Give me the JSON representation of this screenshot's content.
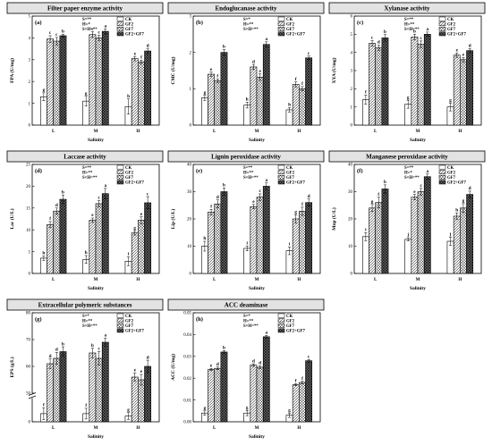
{
  "legend": [
    "CK",
    "GF2",
    "GF7",
    "GF2+GF7"
  ],
  "patterns": [
    "white",
    "diag",
    "cross",
    "dark"
  ],
  "chart_data": [
    {
      "type": "bar",
      "id": "p1",
      "label": "(a)",
      "title": "Filter paper enzyme activity",
      "ylabel": "FPA (U/mg)",
      "xlabel": "Salinity",
      "categories": [
        "L",
        "M",
        "H"
      ],
      "ylim": [
        0,
        5
      ],
      "yticks": [
        "0",
        "1",
        "2",
        "3",
        "4",
        "5"
      ],
      "stats": [
        "S=**",
        "H=*",
        "S×H=**"
      ],
      "series": [
        {
          "name": "CK",
          "values": [
            1.3,
            1.1,
            0.85
          ],
          "errors": [
            0.18,
            0.22,
            0.35
          ],
          "letters": [
            "g",
            "g",
            "h"
          ]
        },
        {
          "name": "GF2",
          "values": [
            3.95,
            4.15,
            3.05
          ],
          "errors": [
            0.15,
            0.13,
            0.1
          ],
          "letters": [
            "c",
            "c",
            "e"
          ]
        },
        {
          "name": "GF7",
          "values": [
            3.85,
            4.0,
            2.9
          ],
          "errors": [
            0.17,
            0.12,
            0.08
          ],
          "letters": [
            "c",
            "c",
            "f"
          ]
        },
        {
          "name": "GF2+GF7",
          "values": [
            4.1,
            4.3,
            3.4
          ],
          "errors": [
            0.06,
            0.12,
            0.12
          ],
          "letters": [
            "b",
            "a",
            "d"
          ]
        }
      ]
    },
    {
      "type": "bar",
      "id": "p2",
      "label": "(b)",
      "title": "Endoglucanase activity",
      "ylabel": "CMC (U/mg)",
      "xlabel": "Salinity",
      "categories": [
        "L",
        "M",
        "H"
      ],
      "ylim": [
        0,
        3
      ],
      "yticks": [
        "0",
        "1",
        "2",
        "3"
      ],
      "stats": [
        "S=*",
        "H=**",
        "S×H=**"
      ],
      "series": [
        {
          "name": "CK",
          "values": [
            0.75,
            0.55,
            0.42
          ],
          "errors": [
            0.07,
            0.08,
            0.06
          ],
          "letters": [
            "g",
            "h",
            "h"
          ]
        },
        {
          "name": "GF2",
          "values": [
            1.4,
            1.6,
            1.12
          ],
          "errors": [
            0.06,
            0.07,
            0.07
          ],
          "letters": [
            "e",
            "d",
            "f"
          ]
        },
        {
          "name": "GF7",
          "values": [
            1.22,
            1.32,
            1.0
          ],
          "errors": [
            0.05,
            0.09,
            0.06
          ],
          "letters": [
            "f",
            "e",
            "f"
          ]
        },
        {
          "name": "GF2+GF7",
          "values": [
            2.0,
            2.22,
            1.85
          ],
          "errors": [
            0.08,
            0.07,
            0.05
          ],
          "letters": [
            "b",
            "a",
            "c"
          ]
        }
      ]
    },
    {
      "type": "bar",
      "id": "p3",
      "label": "(c)",
      "title": "Xylanase activity",
      "ylabel": "XYA (U/mg)",
      "xlabel": "Salinity",
      "categories": [
        "L",
        "M",
        "H"
      ],
      "ylim": [
        0,
        6
      ],
      "yticks": [
        "0",
        "1",
        "2",
        "3",
        "4",
        "5",
        "6"
      ],
      "stats": [
        "S=**",
        "H=**",
        "S×H=**"
      ],
      "series": [
        {
          "name": "CK",
          "values": [
            1.4,
            1.15,
            1.0
          ],
          "errors": [
            0.25,
            0.22,
            0.22
          ],
          "letters": [
            "f",
            "g",
            "g"
          ]
        },
        {
          "name": "GF2",
          "values": [
            4.5,
            4.85,
            3.85
          ],
          "errors": [
            0.15,
            0.15,
            0.12
          ],
          "letters": [
            "c",
            "b",
            "e"
          ]
        },
        {
          "name": "GF7",
          "values": [
            4.25,
            4.45,
            3.6
          ],
          "errors": [
            0.15,
            0.18,
            0.12
          ],
          "letters": [
            "d",
            "c",
            "e"
          ]
        },
        {
          "name": "GF2+GF7",
          "values": [
            4.8,
            5.0,
            4.1
          ],
          "errors": [
            0.18,
            0.12,
            0.12
          ],
          "letters": [
            "b",
            "a",
            "d"
          ]
        }
      ]
    },
    {
      "type": "bar",
      "id": "p4",
      "label": "(d)",
      "title": "Laccase  activity",
      "ylabel": "Lac (U/L)",
      "xlabel": "Salinity",
      "categories": [
        "L",
        "M",
        "H"
      ],
      "ylim": [
        0,
        25
      ],
      "yticks": [
        "0",
        "5",
        "10",
        "15",
        "20",
        "25"
      ],
      "stats": [
        "S=**",
        "H=**",
        "S×H=**"
      ],
      "series": [
        {
          "name": "CK",
          "values": [
            3.5,
            3.2,
            2.8
          ],
          "errors": [
            0.5,
            0.9,
            1.0
          ],
          "letters": [
            "h",
            "h",
            "i"
          ]
        },
        {
          "name": "GF2",
          "values": [
            11.2,
            12.2,
            9.3
          ],
          "errors": [
            0.7,
            0.5,
            0.5
          ],
          "letters": [
            "f",
            "e",
            "g"
          ]
        },
        {
          "name": "GF7",
          "values": [
            14.3,
            16.0,
            12.2
          ],
          "errors": [
            0.7,
            0.7,
            0.8
          ],
          "letters": [
            "d",
            "c",
            "e"
          ]
        },
        {
          "name": "GF2+GF7",
          "values": [
            17.0,
            18.3,
            16.2
          ],
          "errors": [
            1.0,
            1.2,
            1.4
          ],
          "letters": [
            "b",
            "a",
            "c"
          ]
        }
      ]
    },
    {
      "type": "bar",
      "id": "p5",
      "label": "(e)",
      "title": "Lignin peroxidase activity",
      "ylabel": "Lip (U/L)",
      "xlabel": "Salinity",
      "categories": [
        "L",
        "M",
        "H"
      ],
      "ylim": [
        0,
        40
      ],
      "yticks": [
        "0",
        "10",
        "20",
        "30",
        "40"
      ],
      "stats": [
        "S=**",
        "H=**",
        "S×H=**"
      ],
      "series": [
        {
          "name": "CK",
          "values": [
            10.0,
            9.2,
            8.3
          ],
          "errors": [
            1.8,
            0.9,
            1.4
          ],
          "letters": [
            "h",
            "i",
            "i"
          ]
        },
        {
          "name": "GF2",
          "values": [
            22.5,
            24.5,
            20.0
          ],
          "errors": [
            1.0,
            0.8,
            1.5
          ],
          "letters": [
            "f",
            "e",
            "g"
          ]
        },
        {
          "name": "GF7",
          "values": [
            25.5,
            28.0,
            22.8
          ],
          "errors": [
            1.5,
            1.2,
            1.5
          ],
          "letters": [
            "d",
            "c",
            "f"
          ]
        },
        {
          "name": "GF2+GF7",
          "values": [
            30.0,
            32.0,
            26.0
          ],
          "errors": [
            1.4,
            1.2,
            1.3
          ],
          "letters": [
            "b",
            "a",
            "d"
          ]
        }
      ]
    },
    {
      "type": "bar",
      "id": "p6",
      "label": "(f)",
      "title": "Manganese peroxidase activity",
      "ylabel": "Mnp (U/L)",
      "xlabel": "Salinity",
      "categories": [
        "L",
        "M",
        "H"
      ],
      "ylim": [
        0,
        40
      ],
      "yticks": [
        "0",
        "10",
        "20",
        "30",
        "40"
      ],
      "stats": [
        "S=**",
        "H=*",
        "S×H=**"
      ],
      "series": [
        {
          "name": "CK",
          "values": [
            13.5,
            12.5,
            11.8
          ],
          "errors": [
            1.5,
            0.6,
            1.5
          ],
          "letters": [
            "i",
            "j",
            "j"
          ]
        },
        {
          "name": "GF2",
          "values": [
            24.0,
            28.0,
            21.0
          ],
          "errors": [
            1.3,
            1.0,
            1.2
          ],
          "letters": [
            "g",
            "e",
            "h"
          ]
        },
        {
          "name": "GF7",
          "values": [
            26.0,
            30.0,
            24.0
          ],
          "errors": [
            2.0,
            1.2,
            1.6
          ],
          "letters": [
            "f",
            "c",
            "g"
          ]
        },
        {
          "name": "GF2+GF7",
          "values": [
            31.0,
            35.5,
            29.0
          ],
          "errors": [
            1.5,
            1.0,
            1.2
          ],
          "letters": [
            "b",
            "a",
            "d"
          ]
        }
      ]
    },
    {
      "type": "bar",
      "id": "p7",
      "label": "(g)",
      "title": "Extracellular polymeric substances",
      "ylabel": "EPS (g/L)",
      "xlabel": "Salinity",
      "categories": [
        "L",
        "M",
        "H"
      ],
      "ylim": [
        0,
        80
      ],
      "yticks": [
        "0",
        "50",
        "60",
        "70",
        "80"
      ],
      "y_broken": true,
      "stats": [
        "S=*",
        "H=**",
        "S×H=**"
      ],
      "series": [
        {
          "name": "CK",
          "values": [
            3.5,
            3.5,
            2.5
          ],
          "errors": [
            2.5,
            2.3,
            1.5
          ],
          "letters": [
            "f",
            "f",
            "g"
          ]
        },
        {
          "name": "GF2",
          "values": [
            61.0,
            65.0,
            56.0
          ],
          "errors": [
            1.8,
            1.8,
            1.5
          ],
          "letters": [
            "d",
            "b",
            "e"
          ]
        },
        {
          "name": "GF7",
          "values": [
            63.0,
            63.0,
            55.0
          ],
          "errors": [
            2.2,
            2.5,
            2.0
          ],
          "letters": [
            "d",
            "c",
            "e"
          ]
        },
        {
          "name": "GF2+GF7",
          "values": [
            65.5,
            69.0,
            60.0
          ],
          "errors": [
            1.8,
            1.5,
            2.3
          ],
          "letters": [
            "b",
            "a",
            "d"
          ]
        }
      ]
    },
    {
      "type": "bar",
      "id": "p8",
      "label": "(h)",
      "title": "ACC deaminase",
      "ylabel": "ACC (U/mg)",
      "xlabel": "Salinity",
      "categories": [
        "L",
        "M",
        "H"
      ],
      "ylim": [
        0,
        0.05
      ],
      "yticks": [
        "0.00",
        "0.01",
        "0.02",
        "0.03",
        "0.04",
        "0.05"
      ],
      "stats": [
        "S=*",
        "H=**",
        "S×H=**"
      ],
      "series": [
        {
          "name": "CK",
          "values": [
            0.004,
            0.004,
            0.003
          ],
          "errors": [
            0.001,
            0.0012,
            0.001
          ],
          "letters": [
            "g",
            "g",
            "g"
          ]
        },
        {
          "name": "GF2",
          "values": [
            0.024,
            0.026,
            0.017
          ],
          "errors": [
            0.0005,
            0.0006,
            0.0005
          ],
          "letters": [
            "e",
            "d",
            "f"
          ]
        },
        {
          "name": "GF7",
          "values": [
            0.0245,
            0.025,
            0.018
          ],
          "errors": [
            0.0006,
            0.0006,
            0.0006
          ],
          "letters": [
            "d",
            "d",
            "f"
          ]
        },
        {
          "name": "GF2+GF7",
          "values": [
            0.032,
            0.039,
            0.028
          ],
          "errors": [
            0.0007,
            0.0006,
            0.0006
          ],
          "letters": [
            "b",
            "a",
            "c"
          ]
        }
      ]
    }
  ]
}
